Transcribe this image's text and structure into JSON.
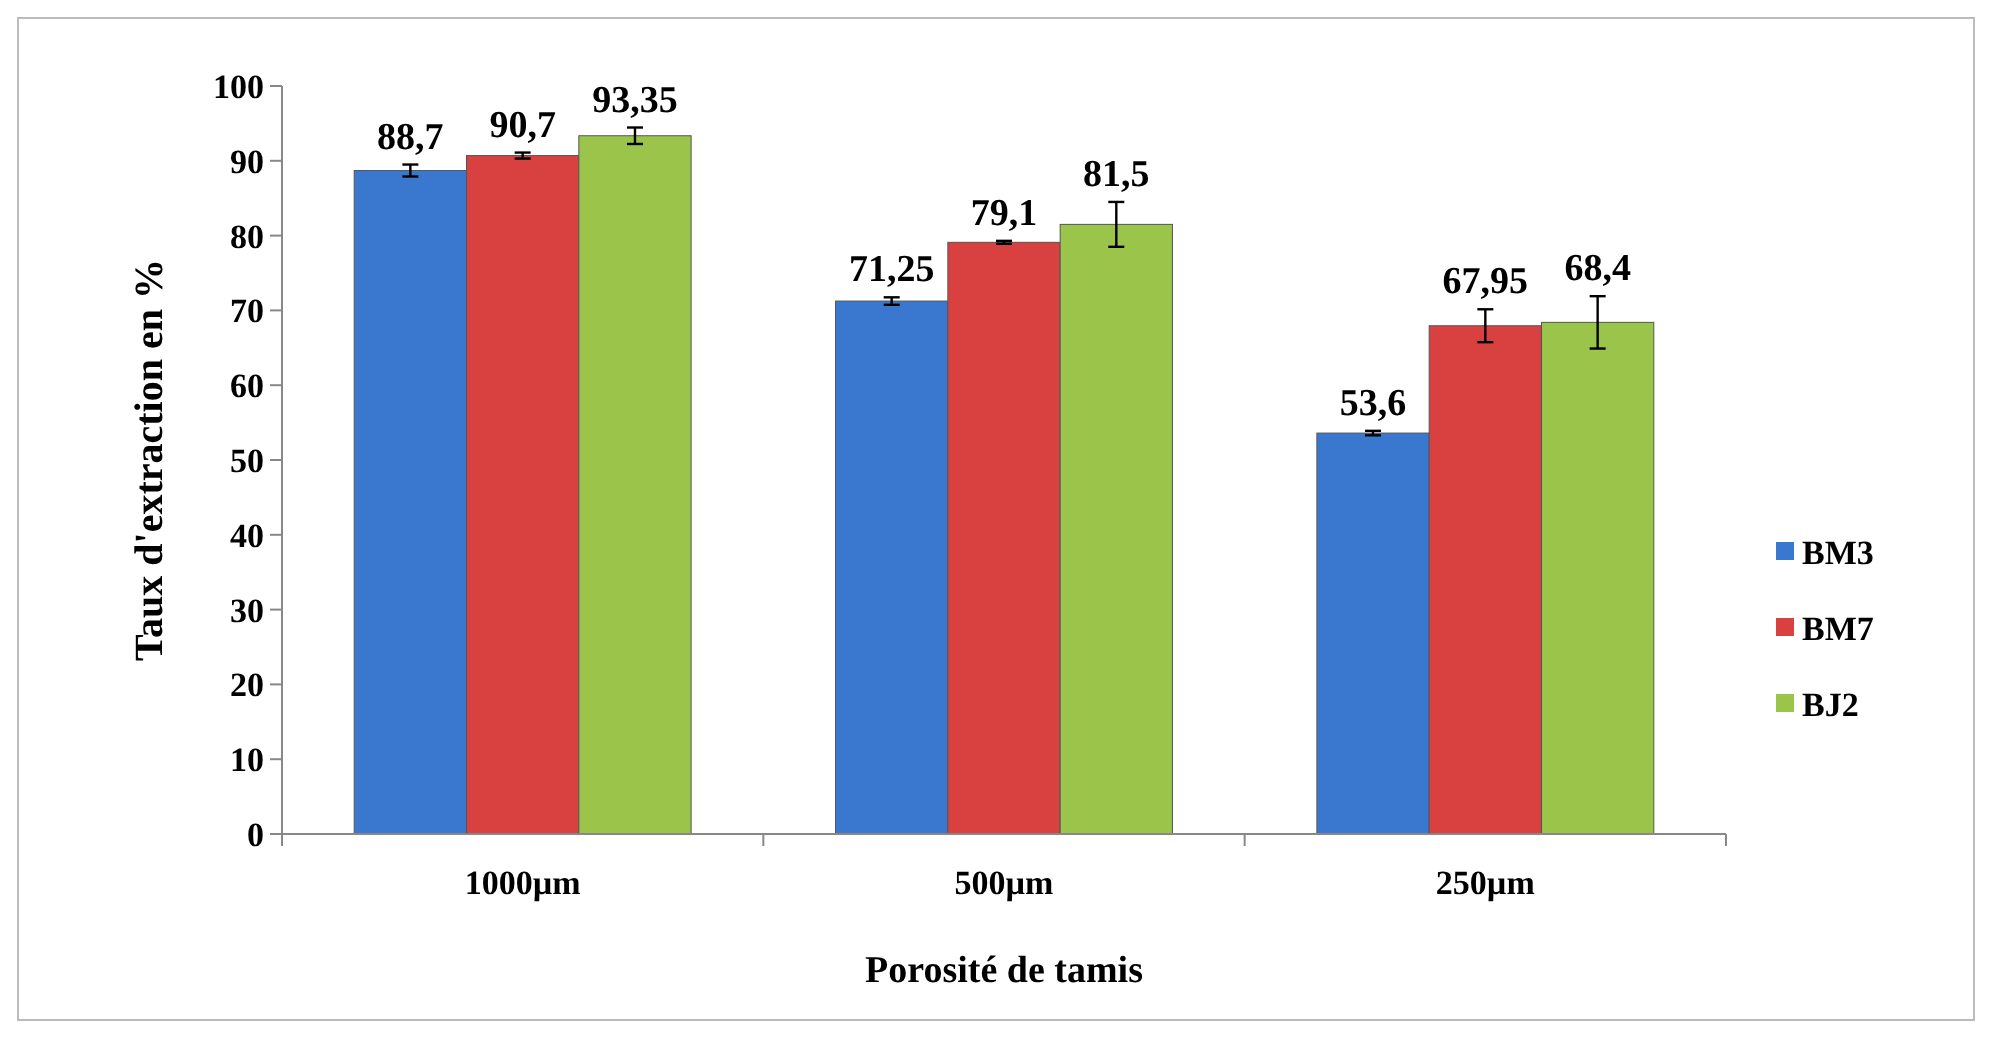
{
  "chart_data": {
    "type": "bar",
    "xlabel": "Porosité de tamis",
    "ylabel": "Taux d'extraction en %",
    "categories": [
      "1000µm",
      "500µm",
      "250µm"
    ],
    "series": [
      {
        "name": "BM3",
        "color": "#3a78d0",
        "values": [
          88.7,
          71.25,
          53.6
        ],
        "value_labels": [
          "88,7",
          "71,25",
          "53,6"
        ],
        "errors": [
          0.8,
          0.5,
          0.3
        ]
      },
      {
        "name": "BM7",
        "color": "#d94040",
        "values": [
          90.7,
          79.1,
          67.95
        ],
        "value_labels": [
          "90,7",
          "79,1",
          "67,95"
        ],
        "errors": [
          0.4,
          0.2,
          2.2
        ]
      },
      {
        "name": "BJ2",
        "color": "#9ac44a",
        "values": [
          93.35,
          81.5,
          68.4
        ],
        "value_labels": [
          "93,35",
          "81,5",
          "68,4"
        ],
        "errors": [
          1.1,
          3,
          3.5
        ]
      }
    ],
    "ylim": [
      0,
      100
    ],
    "yticks": [
      0,
      10,
      20,
      30,
      40,
      50,
      60,
      70,
      80,
      90,
      100
    ],
    "legend": "right",
    "grid": false
  }
}
